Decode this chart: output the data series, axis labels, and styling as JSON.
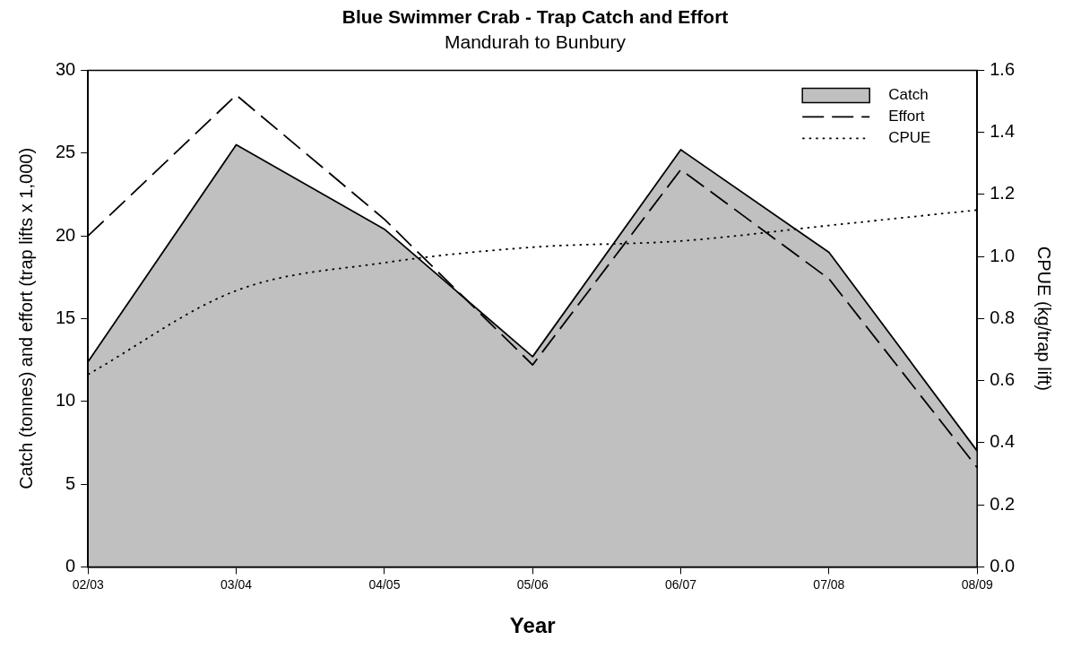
{
  "chart_data": {
    "type": "line",
    "title": "Blue Swimmer Crab - Trap Catch and Effort",
    "subtitle": "Mandurah to Bunbury",
    "xlabel": "Year",
    "ylabel": "Catch (tonnes) and effort (trap lifts x 1,000)",
    "y2label": "CPUE (kg/trap lift)",
    "categories": [
      "02/03",
      "03/04",
      "04/05",
      "05/06",
      "06/07",
      "07/08",
      "08/09"
    ],
    "series": [
      {
        "name": "Catch",
        "type": "area",
        "color": "#c0c0c0",
        "line_style": "solid",
        "values": [
          12.4,
          25.5,
          20.4,
          12.7,
          25.2,
          19.0,
          7.0
        ]
      },
      {
        "name": "Effort",
        "type": "line",
        "color": "#000000",
        "line_style": "dashed",
        "values": [
          20.0,
          28.5,
          21.0,
          12.2,
          24.0,
          17.4,
          6.0
        ]
      },
      {
        "name": "CPUE",
        "type": "line",
        "color": "#000000",
        "line_style": "dotted",
        "axis": "y2",
        "values": [
          0.62,
          0.89,
          0.98,
          1.03,
          1.05,
          1.1,
          1.15
        ]
      }
    ],
    "ylim": [
      0,
      30
    ],
    "yticks": [
      0,
      5,
      10,
      15,
      20,
      25,
      30
    ],
    "y2lim": [
      0,
      1.6
    ],
    "y2ticks": [
      {
        "value": 0,
        "label": "0.0"
      },
      {
        "value": 0.2,
        "label": "0.2"
      },
      {
        "value": 0.4,
        "label": "0.4"
      },
      {
        "value": 0.6,
        "label": "0.6"
      },
      {
        "value": 0.8,
        "label": "0.8"
      },
      {
        "value": 1,
        "label": "1.0"
      },
      {
        "value": 1.2,
        "label": "1.2"
      },
      {
        "value": 1.4,
        "label": "1.4"
      },
      {
        "value": 1.6,
        "label": "1.6"
      }
    ],
    "grid": false,
    "legend": "top right",
    "marker": "none"
  }
}
